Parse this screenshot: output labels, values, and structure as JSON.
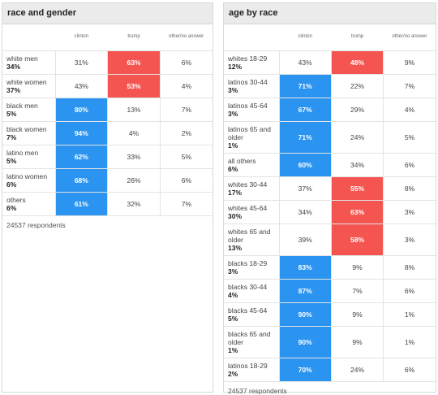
{
  "left": {
    "title": "race and gender",
    "columns": [
      "clinton",
      "trump",
      "other/no answer"
    ],
    "rows": [
      {
        "label": "white men",
        "share": "34%",
        "clinton": "31%",
        "trump": "63%",
        "other": "6%",
        "winner": "trump"
      },
      {
        "label": "white women",
        "share": "37%",
        "clinton": "43%",
        "trump": "53%",
        "other": "4%",
        "winner": "trump"
      },
      {
        "label": "black men",
        "share": "5%",
        "clinton": "80%",
        "trump": "13%",
        "other": "7%",
        "winner": "clinton"
      },
      {
        "label": "black women",
        "share": "7%",
        "clinton": "94%",
        "trump": "4%",
        "other": "2%",
        "winner": "clinton"
      },
      {
        "label": "latino men",
        "share": "5%",
        "clinton": "62%",
        "trump": "33%",
        "other": "5%",
        "winner": "clinton"
      },
      {
        "label": "latino women",
        "share": "6%",
        "clinton": "68%",
        "trump": "26%",
        "other": "6%",
        "winner": "clinton"
      },
      {
        "label": "others",
        "share": "6%",
        "clinton": "61%",
        "trump": "32%",
        "other": "7%",
        "winner": "clinton"
      }
    ],
    "footer": "24537 respondents"
  },
  "right": {
    "title": "age by race",
    "columns": [
      "clinton",
      "trump",
      "other/no answer"
    ],
    "rows": [
      {
        "label": "whites 18-29",
        "share": "12%",
        "clinton": "43%",
        "trump": "48%",
        "other": "9%",
        "winner": "trump"
      },
      {
        "label": "latinos 30-44",
        "share": "3%",
        "clinton": "71%",
        "trump": "22%",
        "other": "7%",
        "winner": "clinton"
      },
      {
        "label": "latinos 45-64",
        "share": "3%",
        "clinton": "67%",
        "trump": "29%",
        "other": "4%",
        "winner": "clinton"
      },
      {
        "label": "latinos 65 and older",
        "share": "1%",
        "clinton": "71%",
        "trump": "24%",
        "other": "5%",
        "winner": "clinton"
      },
      {
        "label": "all others",
        "share": "6%",
        "clinton": "60%",
        "trump": "34%",
        "other": "6%",
        "winner": "clinton"
      },
      {
        "label": "whites 30-44",
        "share": "17%",
        "clinton": "37%",
        "trump": "55%",
        "other": "8%",
        "winner": "trump"
      },
      {
        "label": "whites 45-64",
        "share": "30%",
        "clinton": "34%",
        "trump": "63%",
        "other": "3%",
        "winner": "trump"
      },
      {
        "label": "whites 65 and older",
        "share": "13%",
        "clinton": "39%",
        "trump": "58%",
        "other": "3%",
        "winner": "trump"
      },
      {
        "label": "blacks 18-29",
        "share": "3%",
        "clinton": "83%",
        "trump": "9%",
        "other": "8%",
        "winner": "clinton"
      },
      {
        "label": "blacks 30-44",
        "share": "4%",
        "clinton": "87%",
        "trump": "7%",
        "other": "6%",
        "winner": "clinton"
      },
      {
        "label": "blacks 45-64",
        "share": "5%",
        "clinton": "90%",
        "trump": "9%",
        "other": "1%",
        "winner": "clinton"
      },
      {
        "label": "blacks 65 and older",
        "share": "1%",
        "clinton": "90%",
        "trump": "9%",
        "other": "1%",
        "winner": "clinton"
      },
      {
        "label": "latinos 18-29",
        "share": "2%",
        "clinton": "70%",
        "trump": "24%",
        "other": "6%",
        "winner": "clinton"
      }
    ],
    "footer": "24537 respondents"
  },
  "colors": {
    "clinton": "#2b94f0",
    "trump": "#f55550"
  }
}
